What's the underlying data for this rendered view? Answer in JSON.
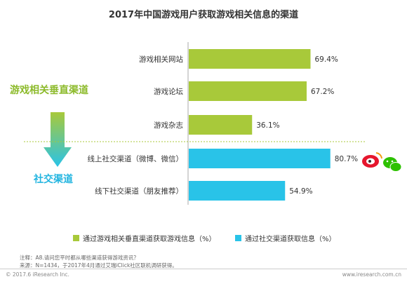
{
  "chart_data": {
    "type": "bar",
    "orientation": "horizontal",
    "title": "2017年中国游戏用户获取游戏相关信息的渠道",
    "categories": [
      "游戏相关网站",
      "游戏论坛",
      "游戏杂志",
      "线上社交渠道（微博、微信）",
      "线下社交渠道（朋友推荐）"
    ],
    "values": [
      69.4,
      67.2,
      36.1,
      80.7,
      54.9
    ],
    "value_labels": [
      "69.4%",
      "67.2%",
      "36.1%",
      "80.7%",
      "54.9%"
    ],
    "series": [
      {
        "name": "通过游戏相关垂直渠道获取游戏信息（%）",
        "color": "#a8c93a",
        "indices": [
          0,
          1,
          2
        ]
      },
      {
        "name": "通过社交渠道获取信息（%）",
        "color": "#29c3e8",
        "indices": [
          3,
          4
        ]
      }
    ],
    "xlim": [
      0,
      100
    ],
    "grid": false,
    "legend": "bottom"
  },
  "side_labels": {
    "vertical": "游戏相关垂直渠道",
    "social": "社交渠道"
  },
  "notes": {
    "line1": "注释：A8.请问您平时都从哪些渠道获得游戏资讯？",
    "line2": "来源：N=1434，于2017年4月通过艾瑞iClick社区联机调研获得。"
  },
  "footer": {
    "left": "© 2017.6 iResearch Inc.",
    "right": "www.iresearch.com.cn"
  },
  "colors": {
    "green": "#a8c93a",
    "cyan": "#29c3e8",
    "side_green": "#8cba2a",
    "side_cyan": "#23b5e0"
  }
}
